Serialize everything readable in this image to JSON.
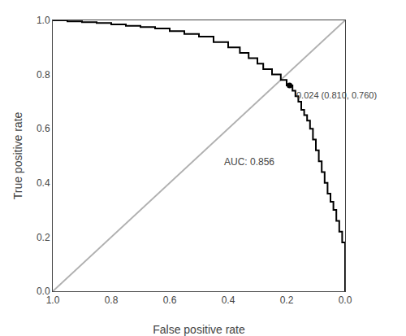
{
  "chart_data": {
    "type": "line",
    "xlabel": "False positive rate",
    "ylabel": "True positive rate",
    "series": [
      {
        "type": "line",
        "color": "#b0b0b0",
        "x": [
          1.0,
          0.0
        ],
        "values": [
          0.0,
          1.0
        ]
      },
      {
        "type": "line",
        "color": "#000000",
        "x": [
          0.0,
          0.0,
          0.01,
          0.01,
          0.02,
          0.02,
          0.03,
          0.03,
          0.04,
          0.04,
          0.05,
          0.05,
          0.06,
          0.06,
          0.07,
          0.07,
          0.08,
          0.08,
          0.09,
          0.09,
          0.1,
          0.1,
          0.11,
          0.11,
          0.12,
          0.12,
          0.13,
          0.13,
          0.14,
          0.14,
          0.15,
          0.15,
          0.16,
          0.16,
          0.17,
          0.17,
          0.18,
          0.18,
          0.19,
          0.19,
          0.2,
          0.2,
          0.22,
          0.22,
          0.25,
          0.25,
          0.28,
          0.28,
          0.3,
          0.3,
          0.33,
          0.33,
          0.36,
          0.36,
          0.4,
          0.4,
          0.45,
          0.45,
          0.5,
          0.5,
          0.55,
          0.55,
          0.6,
          0.6,
          0.65,
          0.65,
          0.7,
          0.7,
          0.75,
          0.75,
          0.8,
          0.8,
          0.85,
          0.85,
          0.9,
          0.9,
          0.95,
          0.95,
          1.0
        ],
        "values": [
          0.0,
          0.18,
          0.18,
          0.22,
          0.22,
          0.26,
          0.26,
          0.3,
          0.3,
          0.33,
          0.33,
          0.36,
          0.36,
          0.4,
          0.4,
          0.44,
          0.44,
          0.48,
          0.48,
          0.52,
          0.52,
          0.56,
          0.56,
          0.6,
          0.6,
          0.63,
          0.63,
          0.65,
          0.65,
          0.67,
          0.67,
          0.7,
          0.7,
          0.72,
          0.72,
          0.74,
          0.74,
          0.76,
          0.76,
          0.76,
          0.76,
          0.78,
          0.78,
          0.8,
          0.8,
          0.82,
          0.82,
          0.84,
          0.84,
          0.86,
          0.86,
          0.88,
          0.88,
          0.9,
          0.9,
          0.92,
          0.92,
          0.94,
          0.94,
          0.95,
          0.95,
          0.96,
          0.96,
          0.97,
          0.97,
          0.975,
          0.975,
          0.98,
          0.98,
          0.985,
          0.985,
          0.99,
          0.99,
          0.993,
          0.993,
          0.996,
          0.996,
          1.0,
          1.0
        ]
      },
      {
        "type": "scatter",
        "color": "#000000",
        "marker": "circle",
        "x": [
          0.19
        ],
        "values": [
          0.76
        ]
      }
    ],
    "annotations": [
      {
        "text": "0.024 (0.810, 0.760)",
        "x": 0.19,
        "y": 0.76
      },
      {
        "text": "AUC: 0.856",
        "x": 0.42,
        "y": 0.45
      }
    ],
    "xlim": [
      1.0,
      0.0
    ],
    "ylim": [
      0.0,
      1.0
    ],
    "xticks": [
      {
        "value": 1.0,
        "label": "1.0"
      },
      0.8,
      0.6,
      0.4,
      0.2,
      {
        "value": 0.0,
        "label": "0.0"
      }
    ],
    "yticks": [
      {
        "value": 0.0,
        "label": "0.0"
      },
      0.2,
      0.4,
      0.6,
      0.8,
      {
        "value": 1.0,
        "label": "1.0"
      }
    ],
    "grid": false
  }
}
